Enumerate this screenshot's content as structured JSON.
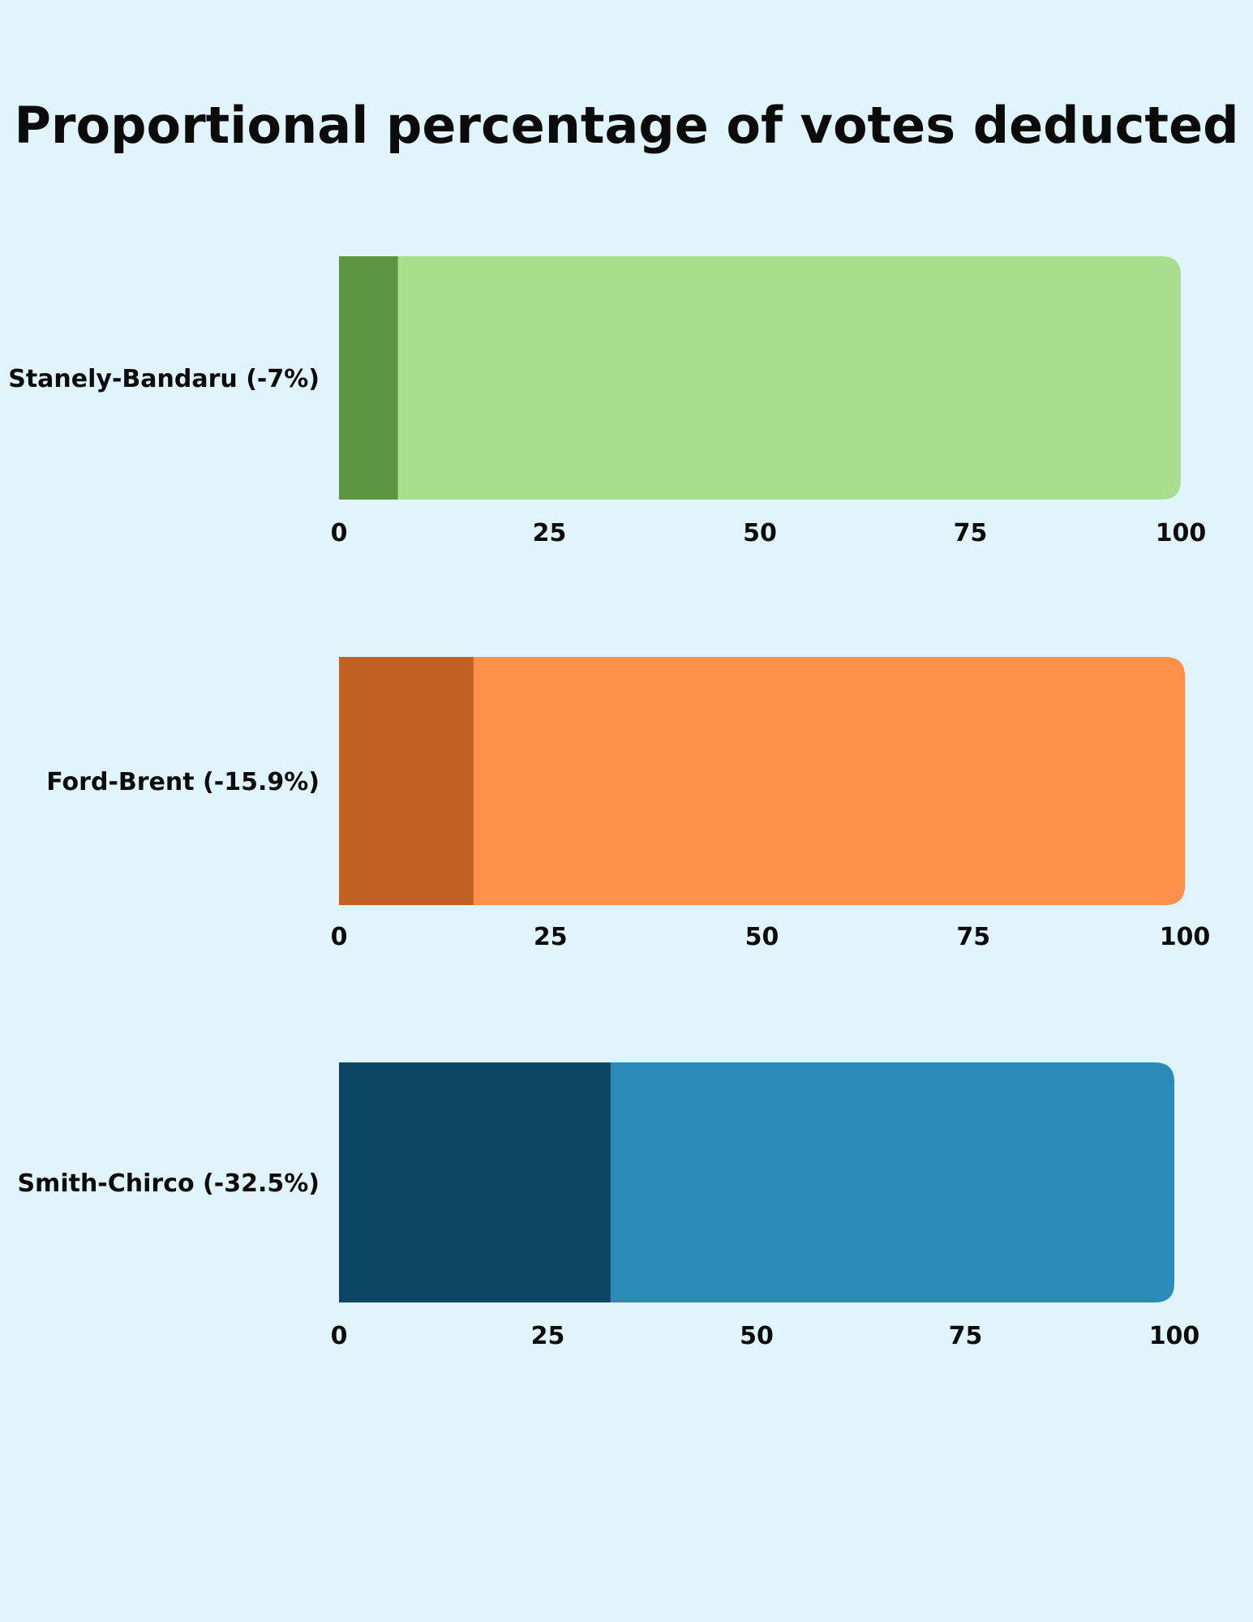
{
  "chart_data": {
    "type": "bar",
    "title": "Proportional percentage of votes deducted",
    "xlim": [
      0,
      100
    ],
    "ticks": [
      0,
      25,
      50,
      75,
      100
    ],
    "grid": false,
    "legend": "none",
    "rows": [
      {
        "label": "Stanely-Bandaru (-7%)",
        "value": 7,
        "total": 100,
        "colors": {
          "deducted": "#5c9642",
          "remaining": "#a8de8e"
        }
      },
      {
        "label": "Ford-Brent (-15.9%)",
        "value": 15.9,
        "total": 100,
        "colors": {
          "deducted": "#c26124",
          "remaining": "#ff914d"
        }
      },
      {
        "label": "Smith-Chirco (-32.5%)",
        "value": 32.5,
        "total": 100,
        "colors": {
          "deducted": "#0c4664",
          "remaining": "#2d8bba"
        }
      }
    ]
  }
}
